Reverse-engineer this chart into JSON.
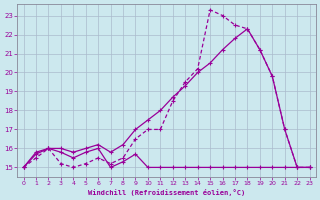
{
  "xlabel": "Windchill (Refroidissement éolien,°C)",
  "bg_color": "#cce8ee",
  "line_color": "#990099",
  "grid_color": "#aabbcc",
  "xlim": [
    -0.5,
    23.5
  ],
  "ylim": [
    14.5,
    23.6
  ],
  "yticks": [
    15,
    16,
    17,
    18,
    19,
    20,
    21,
    22,
    23
  ],
  "xticks": [
    0,
    1,
    2,
    3,
    4,
    5,
    6,
    7,
    8,
    9,
    10,
    11,
    12,
    13,
    14,
    15,
    16,
    17,
    18,
    19,
    20,
    21,
    22,
    23
  ],
  "s1_x": [
    0,
    1,
    2,
    3,
    4,
    5,
    6,
    7,
    8,
    9,
    10,
    11,
    12,
    13,
    14,
    15,
    16,
    17,
    18,
    19,
    20,
    21,
    22,
    23
  ],
  "s1_y": [
    15.0,
    15.7,
    16.0,
    15.8,
    15.5,
    15.8,
    16.0,
    15.0,
    15.3,
    15.7,
    15.0,
    15.0,
    15.0,
    15.0,
    15.0,
    15.0,
    15.0,
    15.0,
    15.0,
    15.0,
    15.0,
    15.0,
    15.0,
    15.0
  ],
  "s2_x": [
    0,
    1,
    2,
    3,
    4,
    5,
    6,
    7,
    8,
    9,
    10,
    11,
    12,
    13,
    14,
    15,
    16,
    17,
    18,
    19,
    20,
    21,
    22,
    23
  ],
  "s2_y": [
    15.0,
    15.5,
    16.0,
    15.2,
    15.0,
    15.2,
    15.5,
    15.2,
    15.5,
    16.5,
    17.0,
    17.0,
    18.5,
    19.5,
    20.2,
    23.3,
    23.0,
    22.5,
    22.3,
    21.2,
    19.8,
    17.0,
    15.0,
    15.0
  ],
  "s3_x": [
    0,
    1,
    2,
    3,
    4,
    5,
    6,
    7,
    8,
    9,
    10,
    11,
    12,
    13,
    14,
    15,
    16,
    17,
    18,
    19,
    20,
    21,
    22,
    23
  ],
  "s3_y": [
    15.0,
    15.8,
    16.0,
    16.0,
    15.8,
    16.0,
    16.2,
    15.8,
    16.2,
    17.0,
    17.5,
    18.0,
    18.7,
    19.3,
    20.0,
    20.5,
    21.2,
    21.8,
    22.3,
    21.2,
    19.8,
    17.0,
    15.0,
    15.0
  ]
}
